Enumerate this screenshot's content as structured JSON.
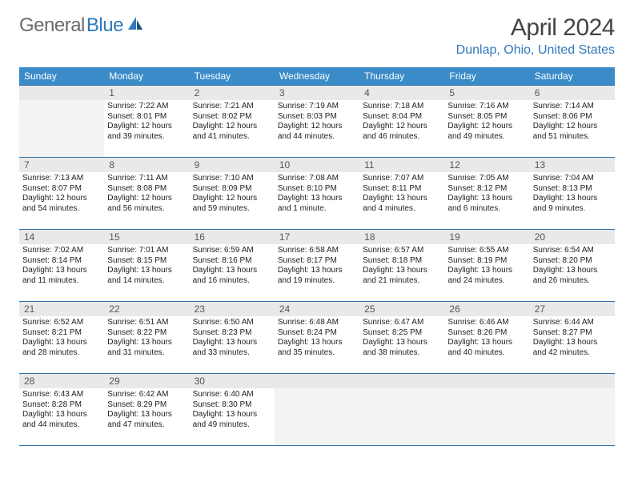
{
  "logo": {
    "part1": "General",
    "part2": "Blue"
  },
  "title": "April 2024",
  "location": "Dunlap, Ohio, United States",
  "colors": {
    "header_bg": "#3b8bc9",
    "border": "#2f6fa8",
    "logo_gray": "#6b6b6b",
    "logo_blue": "#2f78bd",
    "daynum_bg": "#e9e9e9",
    "empty_bg": "#f3f3f3"
  },
  "day_labels": [
    "Sunday",
    "Monday",
    "Tuesday",
    "Wednesday",
    "Thursday",
    "Friday",
    "Saturday"
  ],
  "weeks": [
    [
      {
        "empty": true
      },
      {
        "n": "1",
        "sunrise": "7:22 AM",
        "sunset": "8:01 PM",
        "dl1": "Daylight: 12 hours",
        "dl2": "and 39 minutes."
      },
      {
        "n": "2",
        "sunrise": "7:21 AM",
        "sunset": "8:02 PM",
        "dl1": "Daylight: 12 hours",
        "dl2": "and 41 minutes."
      },
      {
        "n": "3",
        "sunrise": "7:19 AM",
        "sunset": "8:03 PM",
        "dl1": "Daylight: 12 hours",
        "dl2": "and 44 minutes."
      },
      {
        "n": "4",
        "sunrise": "7:18 AM",
        "sunset": "8:04 PM",
        "dl1": "Daylight: 12 hours",
        "dl2": "and 46 minutes."
      },
      {
        "n": "5",
        "sunrise": "7:16 AM",
        "sunset": "8:05 PM",
        "dl1": "Daylight: 12 hours",
        "dl2": "and 49 minutes."
      },
      {
        "n": "6",
        "sunrise": "7:14 AM",
        "sunset": "8:06 PM",
        "dl1": "Daylight: 12 hours",
        "dl2": "and 51 minutes."
      }
    ],
    [
      {
        "n": "7",
        "sunrise": "7:13 AM",
        "sunset": "8:07 PM",
        "dl1": "Daylight: 12 hours",
        "dl2": "and 54 minutes."
      },
      {
        "n": "8",
        "sunrise": "7:11 AM",
        "sunset": "8:08 PM",
        "dl1": "Daylight: 12 hours",
        "dl2": "and 56 minutes."
      },
      {
        "n": "9",
        "sunrise": "7:10 AM",
        "sunset": "8:09 PM",
        "dl1": "Daylight: 12 hours",
        "dl2": "and 59 minutes."
      },
      {
        "n": "10",
        "sunrise": "7:08 AM",
        "sunset": "8:10 PM",
        "dl1": "Daylight: 13 hours",
        "dl2": "and 1 minute."
      },
      {
        "n": "11",
        "sunrise": "7:07 AM",
        "sunset": "8:11 PM",
        "dl1": "Daylight: 13 hours",
        "dl2": "and 4 minutes."
      },
      {
        "n": "12",
        "sunrise": "7:05 AM",
        "sunset": "8:12 PM",
        "dl1": "Daylight: 13 hours",
        "dl2": "and 6 minutes."
      },
      {
        "n": "13",
        "sunrise": "7:04 AM",
        "sunset": "8:13 PM",
        "dl1": "Daylight: 13 hours",
        "dl2": "and 9 minutes."
      }
    ],
    [
      {
        "n": "14",
        "sunrise": "7:02 AM",
        "sunset": "8:14 PM",
        "dl1": "Daylight: 13 hours",
        "dl2": "and 11 minutes."
      },
      {
        "n": "15",
        "sunrise": "7:01 AM",
        "sunset": "8:15 PM",
        "dl1": "Daylight: 13 hours",
        "dl2": "and 14 minutes."
      },
      {
        "n": "16",
        "sunrise": "6:59 AM",
        "sunset": "8:16 PM",
        "dl1": "Daylight: 13 hours",
        "dl2": "and 16 minutes."
      },
      {
        "n": "17",
        "sunrise": "6:58 AM",
        "sunset": "8:17 PM",
        "dl1": "Daylight: 13 hours",
        "dl2": "and 19 minutes."
      },
      {
        "n": "18",
        "sunrise": "6:57 AM",
        "sunset": "8:18 PM",
        "dl1": "Daylight: 13 hours",
        "dl2": "and 21 minutes."
      },
      {
        "n": "19",
        "sunrise": "6:55 AM",
        "sunset": "8:19 PM",
        "dl1": "Daylight: 13 hours",
        "dl2": "and 24 minutes."
      },
      {
        "n": "20",
        "sunrise": "6:54 AM",
        "sunset": "8:20 PM",
        "dl1": "Daylight: 13 hours",
        "dl2": "and 26 minutes."
      }
    ],
    [
      {
        "n": "21",
        "sunrise": "6:52 AM",
        "sunset": "8:21 PM",
        "dl1": "Daylight: 13 hours",
        "dl2": "and 28 minutes."
      },
      {
        "n": "22",
        "sunrise": "6:51 AM",
        "sunset": "8:22 PM",
        "dl1": "Daylight: 13 hours",
        "dl2": "and 31 minutes."
      },
      {
        "n": "23",
        "sunrise": "6:50 AM",
        "sunset": "8:23 PM",
        "dl1": "Daylight: 13 hours",
        "dl2": "and 33 minutes."
      },
      {
        "n": "24",
        "sunrise": "6:48 AM",
        "sunset": "8:24 PM",
        "dl1": "Daylight: 13 hours",
        "dl2": "and 35 minutes."
      },
      {
        "n": "25",
        "sunrise": "6:47 AM",
        "sunset": "8:25 PM",
        "dl1": "Daylight: 13 hours",
        "dl2": "and 38 minutes."
      },
      {
        "n": "26",
        "sunrise": "6:46 AM",
        "sunset": "8:26 PM",
        "dl1": "Daylight: 13 hours",
        "dl2": "and 40 minutes."
      },
      {
        "n": "27",
        "sunrise": "6:44 AM",
        "sunset": "8:27 PM",
        "dl1": "Daylight: 13 hours",
        "dl2": "and 42 minutes."
      }
    ],
    [
      {
        "n": "28",
        "sunrise": "6:43 AM",
        "sunset": "8:28 PM",
        "dl1": "Daylight: 13 hours",
        "dl2": "and 44 minutes."
      },
      {
        "n": "29",
        "sunrise": "6:42 AM",
        "sunset": "8:29 PM",
        "dl1": "Daylight: 13 hours",
        "dl2": "and 47 minutes."
      },
      {
        "n": "30",
        "sunrise": "6:40 AM",
        "sunset": "8:30 PM",
        "dl1": "Daylight: 13 hours",
        "dl2": "and 49 minutes."
      },
      {
        "empty": true
      },
      {
        "empty": true
      },
      {
        "empty": true
      },
      {
        "empty": true
      }
    ]
  ],
  "labels": {
    "sunrise": "Sunrise: ",
    "sunset": "Sunset: "
  }
}
